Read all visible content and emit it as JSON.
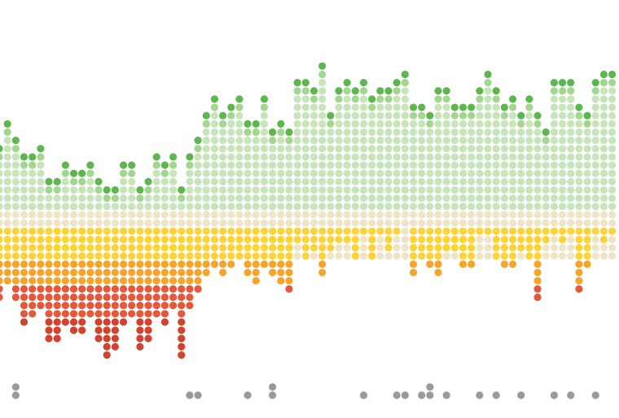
{
  "chart_data": {
    "type": "dot-matrix",
    "up": [
      8,
      11,
      9,
      7,
      7,
      8,
      4,
      4,
      6,
      5,
      5,
      6,
      4,
      3,
      3,
      6,
      6,
      3,
      4,
      7,
      6,
      7,
      3,
      7,
      9,
      12,
      14,
      12,
      13,
      14,
      11,
      11,
      14,
      10,
      11,
      10,
      16,
      16,
      15,
      18,
      12,
      15,
      16,
      15,
      16,
      14,
      15,
      15,
      16,
      17,
      13,
      13,
      12,
      15,
      15,
      13,
      13,
      13,
      15,
      17,
      15,
      13,
      14,
      12,
      14,
      12,
      10,
      16,
      16,
      16,
      13,
      12,
      16,
      17,
      17
    ],
    "down": [
      9,
      7,
      9,
      12,
      11,
      10,
      14,
      14,
      12,
      13,
      13,
      11,
      14,
      16,
      15,
      12,
      11,
      15,
      14,
      11,
      12,
      10,
      16,
      10,
      8,
      6,
      5,
      6,
      5,
      4,
      6,
      7,
      5,
      6,
      7,
      8,
      2,
      4,
      3,
      6,
      3,
      2,
      2,
      4,
      1,
      4,
      1,
      3,
      1,
      0,
      6,
      4,
      5,
      6,
      3,
      3,
      5,
      5,
      1,
      1,
      4,
      5,
      5,
      3,
      4,
      9,
      2,
      1,
      2,
      1,
      8,
      5,
      1,
      2,
      1
    ],
    "gray": [
      0,
      0,
      2,
      0,
      0,
      0,
      0,
      0,
      0,
      0,
      0,
      0,
      0,
      0,
      0,
      0,
      0,
      0,
      0,
      0,
      0,
      0,
      0,
      1,
      1,
      0,
      0,
      0,
      0,
      0,
      1,
      0,
      0,
      2,
      0,
      0,
      0,
      0,
      0,
      0,
      0,
      0,
      0,
      0,
      1,
      0,
      0,
      0,
      1,
      1,
      0,
      1,
      2,
      0,
      1,
      0,
      0,
      0,
      1,
      0,
      1,
      0,
      0,
      1,
      0,
      0,
      0,
      1,
      0,
      1,
      0,
      0,
      1,
      0,
      0
    ],
    "colors": {
      "up_top": "#5db64e",
      "up_mid": "#a3d68e",
      "up_base": "#c8e4ba",
      "band": "#eee4c8",
      "down": [
        "#fcd33a",
        "#f6a42b",
        "#e5583a",
        "#d0432e"
      ],
      "gray": "#9a9a9a"
    }
  }
}
